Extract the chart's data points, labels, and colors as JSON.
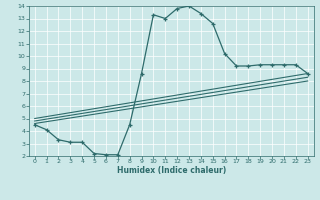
{
  "xlabel": "Humidex (Indice chaleur)",
  "xlim": [
    -0.5,
    23.5
  ],
  "ylim": [
    2,
    14
  ],
  "xticks": [
    0,
    1,
    2,
    3,
    4,
    5,
    6,
    7,
    8,
    9,
    10,
    11,
    12,
    13,
    14,
    15,
    16,
    17,
    18,
    19,
    20,
    21,
    22,
    23
  ],
  "yticks": [
    2,
    3,
    4,
    5,
    6,
    7,
    8,
    9,
    10,
    11,
    12,
    13,
    14
  ],
  "color": "#2e6b6b",
  "bg_color": "#cce8e8",
  "curve1_x": [
    0,
    1,
    2,
    3,
    4,
    5,
    6,
    7,
    8,
    9,
    10,
    11,
    12,
    13,
    14,
    15,
    16,
    17,
    18,
    19,
    20,
    21,
    22,
    23
  ],
  "curve1_y": [
    4.5,
    4.1,
    3.3,
    3.1,
    3.1,
    2.2,
    2.1,
    2.1,
    4.5,
    8.6,
    13.3,
    13.0,
    13.8,
    14.0,
    13.4,
    12.6,
    10.2,
    9.2,
    9.2,
    9.3,
    9.3,
    9.3,
    9.3,
    8.6
  ],
  "line1_x": [
    0,
    23
  ],
  "line1_y": [
    4.6,
    8.0
  ],
  "line2_x": [
    0,
    23
  ],
  "line2_y": [
    4.8,
    8.3
  ],
  "line3_x": [
    0,
    23
  ],
  "line3_y": [
    5.0,
    8.6
  ]
}
